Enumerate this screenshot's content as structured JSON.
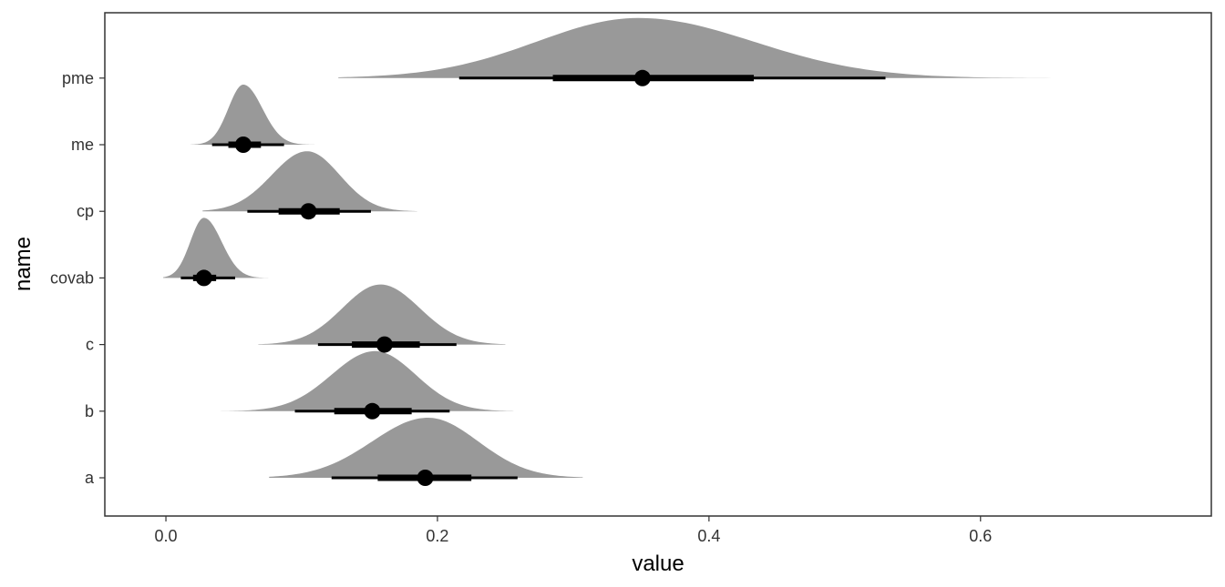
{
  "chart_data": {
    "type": "halfeye",
    "title": "",
    "xlabel": "value",
    "ylabel": "name",
    "xlim": [
      -0.045,
      0.77
    ],
    "x_ticks": [
      0.0,
      0.2,
      0.4,
      0.6
    ],
    "x_tick_labels": [
      "0.0",
      "0.2",
      "0.4",
      "0.6"
    ],
    "categories": [
      "a",
      "b",
      "c",
      "covab",
      "cp",
      "me",
      "pme"
    ],
    "grid": false,
    "legend": "none",
    "colors": {
      "density": "#999999",
      "interval": "#000000",
      "panel_border": "#333333"
    },
    "series": [
      {
        "category": "a",
        "point": 0.191,
        "interval_66": [
          0.156,
          0.225
        ],
        "interval_95": [
          0.122,
          0.259
        ],
        "density": {
          "min": 0.076,
          "max": 0.307,
          "peak": 0.193,
          "sd_left": 0.041,
          "sd_right": 0.037
        }
      },
      {
        "category": "b",
        "point": 0.152,
        "interval_66": [
          0.124,
          0.181
        ],
        "interval_95": [
          0.095,
          0.209
        ],
        "density": {
          "min": 0.03,
          "max": 0.256,
          "peak": 0.154,
          "sd_left": 0.032,
          "sd_right": 0.03
        }
      },
      {
        "category": "c",
        "point": 0.161,
        "interval_66": [
          0.137,
          0.187
        ],
        "interval_95": [
          0.112,
          0.214
        ],
        "density": {
          "min": 0.068,
          "max": 0.25,
          "peak": 0.158,
          "sd_left": 0.028,
          "sd_right": 0.029
        }
      },
      {
        "category": "covab",
        "point": 0.028,
        "interval_66": [
          0.02,
          0.037
        ],
        "interval_95": [
          0.011,
          0.051
        ],
        "density": {
          "min": -0.002,
          "max": 0.083,
          "peak": 0.028,
          "sd_left": 0.01,
          "sd_right": 0.013
        }
      },
      {
        "category": "cp",
        "point": 0.105,
        "interval_66": [
          0.083,
          0.128
        ],
        "interval_95": [
          0.06,
          0.151
        ],
        "density": {
          "min": 0.027,
          "max": 0.185,
          "peak": 0.104,
          "sd_left": 0.026,
          "sd_right": 0.024
        }
      },
      {
        "category": "me",
        "point": 0.057,
        "interval_66": [
          0.046,
          0.07
        ],
        "interval_95": [
          0.034,
          0.087
        ],
        "density": {
          "min": 0.018,
          "max": 0.136,
          "peak": 0.057,
          "sd_left": 0.011,
          "sd_right": 0.014
        }
      },
      {
        "category": "pme",
        "point": 0.351,
        "interval_66": [
          0.285,
          0.433
        ],
        "interval_95": [
          0.216,
          0.53
        ],
        "density": {
          "min": 0.127,
          "max": 0.745,
          "peak": 0.348,
          "sd_left": 0.075,
          "sd_right": 0.085
        }
      }
    ]
  }
}
